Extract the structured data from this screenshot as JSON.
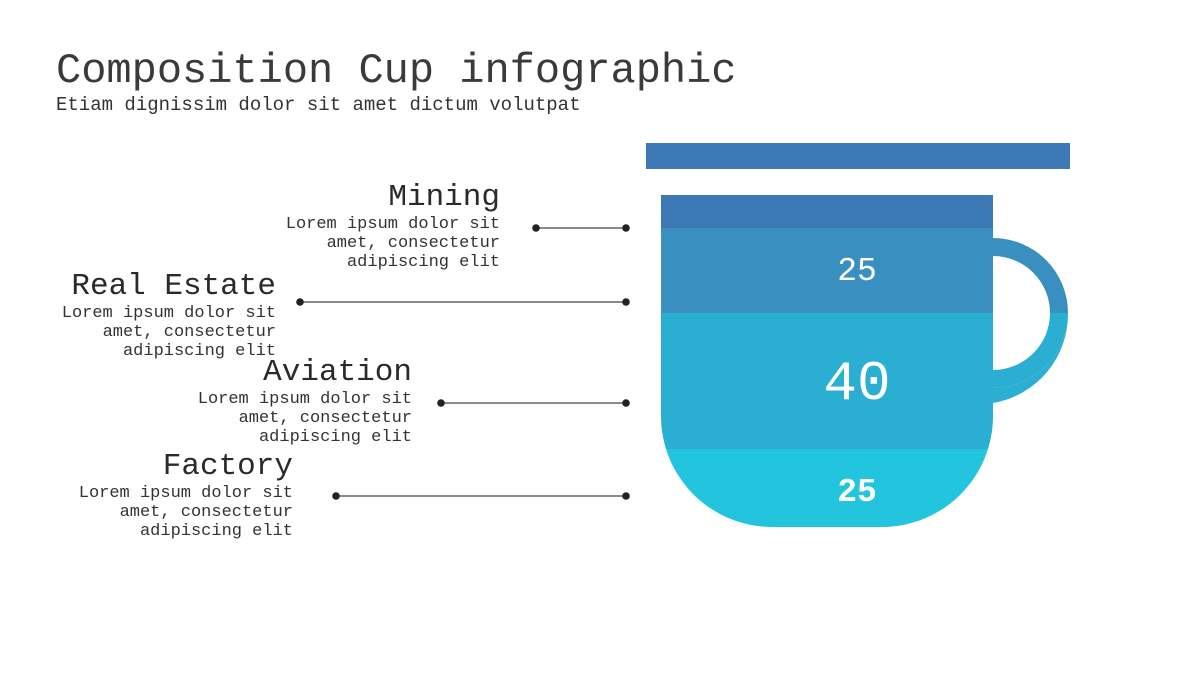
{
  "title": "Composition Cup infographic",
  "subtitle": "Etiam dignissim dolor sit amet dictum volutpat",
  "items": [
    {
      "name": "Mining",
      "desc": [
        "Lorem ipsum dolor sit",
        "amet, consectetur",
        "adipiscing elit"
      ]
    },
    {
      "name": "Real Estate",
      "desc": [
        "Lorem ipsum dolor sit",
        "amet, consectetur",
        "adipiscing elit"
      ]
    },
    {
      "name": "Aviation",
      "desc": [
        "Lorem ipsum dolor sit",
        "amet, consectetur",
        "adipiscing elit"
      ]
    },
    {
      "name": "Factory",
      "desc": [
        "Lorem ipsum dolor sit",
        "amet, consectetur",
        "adipiscing elit"
      ]
    }
  ],
  "cup": {
    "segments": [
      {
        "value": "",
        "color": "#3d79b5"
      },
      {
        "value": "25",
        "color": "#398fc0"
      },
      {
        "value": "40",
        "color": "#2aaed2"
      },
      {
        "value": "25",
        "color": "#22c5dd"
      }
    ],
    "lid_color": "#3d79b5",
    "handle_colors": [
      "#398fc0",
      "#2aaed2"
    ]
  },
  "colors": {
    "line": "#444444",
    "dot": "#222222"
  }
}
